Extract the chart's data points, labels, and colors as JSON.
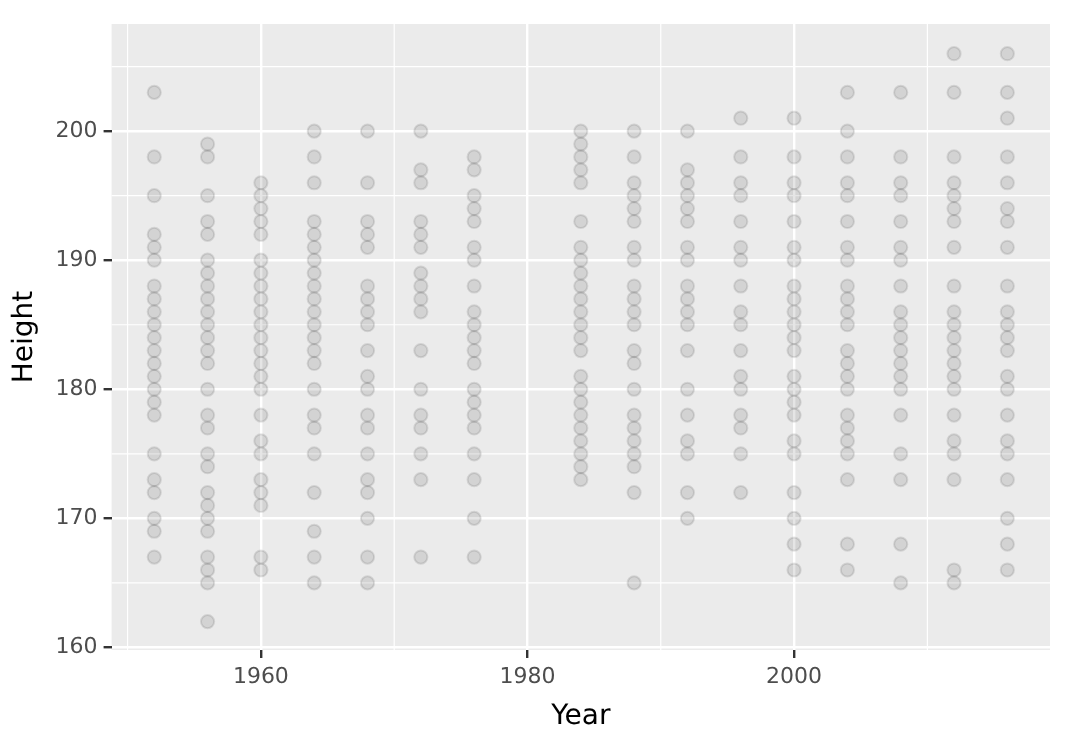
{
  "chart_data": {
    "type": "scatter",
    "xlabel": "Year",
    "ylabel": "Height",
    "xlim": [
      1948.8,
      2019.2
    ],
    "ylim": [
      159.8,
      208.3
    ],
    "xticks": [
      1960,
      1980,
      2000
    ],
    "yticks": [
      160,
      170,
      180,
      190,
      200
    ],
    "grid": true,
    "legend": false,
    "marker": "circle",
    "series": [
      {
        "color": "#000000",
        "x": [
          1952,
          1952,
          1952,
          1952,
          1952,
          1952,
          1952,
          1952,
          1952,
          1952,
          1952,
          1952,
          1952,
          1952,
          1952,
          1952,
          1952,
          1952,
          1952,
          1952,
          1952,
          1952,
          1952,
          1956,
          1956,
          1956,
          1956,
          1956,
          1956,
          1956,
          1956,
          1956,
          1956,
          1956,
          1956,
          1956,
          1956,
          1956,
          1956,
          1956,
          1956,
          1956,
          1956,
          1956,
          1956,
          1956,
          1956,
          1956,
          1956,
          1956,
          1960,
          1960,
          1960,
          1960,
          1960,
          1960,
          1960,
          1960,
          1960,
          1960,
          1960,
          1960,
          1960,
          1960,
          1960,
          1960,
          1960,
          1960,
          1960,
          1960,
          1960,
          1960,
          1960,
          1960,
          1964,
          1964,
          1964,
          1964,
          1964,
          1964,
          1964,
          1964,
          1964,
          1964,
          1964,
          1964,
          1964,
          1964,
          1964,
          1964,
          1964,
          1964,
          1964,
          1964,
          1964,
          1964,
          1964,
          1968,
          1968,
          1968,
          1968,
          1968,
          1968,
          1968,
          1968,
          1968,
          1968,
          1968,
          1968,
          1968,
          1968,
          1968,
          1968,
          1968,
          1968,
          1968,
          1968,
          1972,
          1972,
          1972,
          1972,
          1972,
          1972,
          1972,
          1972,
          1972,
          1972,
          1972,
          1972,
          1972,
          1972,
          1972,
          1972,
          1972,
          1976,
          1976,
          1976,
          1976,
          1976,
          1976,
          1976,
          1976,
          1976,
          1976,
          1976,
          1976,
          1976,
          1976,
          1976,
          1976,
          1976,
          1976,
          1976,
          1976,
          1976,
          1984,
          1984,
          1984,
          1984,
          1984,
          1984,
          1984,
          1984,
          1984,
          1984,
          1984,
          1984,
          1984,
          1984,
          1984,
          1984,
          1984,
          1984,
          1984,
          1984,
          1984,
          1984,
          1984,
          1984,
          1988,
          1988,
          1988,
          1988,
          1988,
          1988,
          1988,
          1988,
          1988,
          1988,
          1988,
          1988,
          1988,
          1988,
          1988,
          1988,
          1988,
          1988,
          1988,
          1988,
          1988,
          1988,
          1992,
          1992,
          1992,
          1992,
          1992,
          1992,
          1992,
          1992,
          1992,
          1992,
          1992,
          1992,
          1992,
          1992,
          1992,
          1992,
          1992,
          1992,
          1992,
          1996,
          1996,
          1996,
          1996,
          1996,
          1996,
          1996,
          1996,
          1996,
          1996,
          1996,
          1996,
          1996,
          1996,
          1996,
          1996,
          1996,
          2000,
          2000,
          2000,
          2000,
          2000,
          2000,
          2000,
          2000,
          2000,
          2000,
          2000,
          2000,
          2000,
          2000,
          2000,
          2000,
          2000,
          2000,
          2000,
          2000,
          2000,
          2000,
          2000,
          2004,
          2004,
          2004,
          2004,
          2004,
          2004,
          2004,
          2004,
          2004,
          2004,
          2004,
          2004,
          2004,
          2004,
          2004,
          2004,
          2004,
          2004,
          2004,
          2004,
          2004,
          2004,
          2004,
          2008,
          2008,
          2008,
          2008,
          2008,
          2008,
          2008,
          2008,
          2008,
          2008,
          2008,
          2008,
          2008,
          2008,
          2008,
          2008,
          2008,
          2008,
          2008,
          2008,
          2012,
          2012,
          2012,
          2012,
          2012,
          2012,
          2012,
          2012,
          2012,
          2012,
          2012,
          2012,
          2012,
          2012,
          2012,
          2012,
          2012,
          2012,
          2012,
          2012,
          2012,
          2012,
          2016,
          2016,
          2016,
          2016,
          2016,
          2016,
          2016,
          2016,
          2016,
          2016,
          2016,
          2016,
          2016,
          2016,
          2016,
          2016,
          2016,
          2016,
          2016,
          2016,
          2016,
          2016
        ],
        "values": [
          203,
          198,
          195,
          192,
          191,
          190,
          188,
          187,
          186,
          185,
          184,
          183,
          182,
          181,
          180,
          179,
          178,
          175,
          173,
          172,
          170,
          169,
          167,
          199,
          198,
          195,
          193,
          192,
          190,
          189,
          188,
          187,
          186,
          185,
          184,
          183,
          182,
          180,
          178,
          177,
          175,
          174,
          172,
          171,
          170,
          169,
          167,
          166,
          165,
          162,
          196,
          195,
          194,
          193,
          192,
          190,
          189,
          188,
          187,
          186,
          185,
          184,
          183,
          182,
          181,
          180,
          178,
          176,
          175,
          173,
          172,
          171,
          167,
          166,
          200,
          198,
          196,
          193,
          192,
          191,
          190,
          189,
          188,
          187,
          186,
          185,
          184,
          183,
          182,
          180,
          178,
          177,
          175,
          172,
          169,
          167,
          165,
          200,
          196,
          193,
          192,
          191,
          188,
          187,
          186,
          185,
          183,
          181,
          180,
          178,
          177,
          175,
          173,
          172,
          170,
          167,
          165,
          200,
          197,
          196,
          193,
          192,
          191,
          189,
          188,
          187,
          186,
          183,
          180,
          178,
          177,
          175,
          173,
          167,
          198,
          197,
          195,
          194,
          193,
          191,
          190,
          188,
          186,
          185,
          184,
          183,
          182,
          180,
          179,
          178,
          177,
          175,
          173,
          170,
          167,
          200,
          199,
          198,
          197,
          196,
          193,
          191,
          190,
          189,
          188,
          187,
          186,
          185,
          184,
          183,
          181,
          180,
          179,
          178,
          177,
          176,
          175,
          174,
          173,
          200,
          198,
          196,
          195,
          194,
          193,
          191,
          190,
          188,
          187,
          186,
          185,
          183,
          182,
          180,
          178,
          177,
          176,
          175,
          174,
          172,
          165,
          200,
          197,
          196,
          195,
          194,
          193,
          191,
          190,
          188,
          187,
          186,
          185,
          183,
          180,
          178,
          176,
          175,
          172,
          170,
          201,
          198,
          196,
          195,
          193,
          191,
          190,
          188,
          186,
          185,
          183,
          181,
          180,
          178,
          177,
          175,
          172,
          201,
          198,
          196,
          195,
          193,
          191,
          190,
          188,
          187,
          186,
          185,
          184,
          183,
          181,
          180,
          179,
          178,
          176,
          175,
          172,
          170,
          168,
          166,
          203,
          200,
          198,
          196,
          195,
          193,
          191,
          190,
          188,
          187,
          186,
          185,
          183,
          182,
          181,
          180,
          178,
          177,
          176,
          175,
          173,
          168,
          166,
          203,
          198,
          196,
          195,
          193,
          191,
          190,
          188,
          186,
          185,
          184,
          183,
          182,
          181,
          180,
          178,
          175,
          173,
          168,
          165,
          206,
          203,
          198,
          196,
          195,
          194,
          193,
          191,
          188,
          186,
          185,
          184,
          183,
          182,
          181,
          180,
          178,
          176,
          175,
          173,
          166,
          165,
          206,
          203,
          201,
          198,
          196,
          194,
          193,
          191,
          188,
          186,
          185,
          184,
          183,
          181,
          180,
          178,
          176,
          175,
          173,
          170,
          168,
          166
        ]
      }
    ]
  }
}
